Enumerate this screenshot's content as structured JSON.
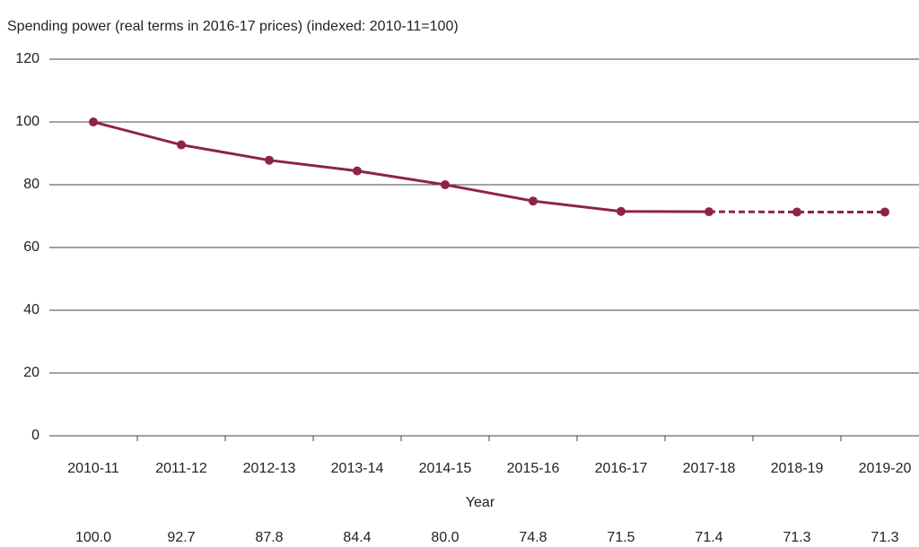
{
  "chart_data": {
    "type": "line",
    "title": "Spending power (real terms in 2016-17 prices) (indexed: 2010-11=100)",
    "x_label": "Year",
    "categories": [
      "2010-11",
      "2011-12",
      "2012-13",
      "2013-14",
      "2014-15",
      "2015-16",
      "2016-17",
      "2017-18",
      "2018-19",
      "2019-20"
    ],
    "series": [
      {
        "color": "#8e2443",
        "values": [
          100,
          92.7,
          87.8,
          84.4,
          80,
          74.8,
          71.5,
          71.4,
          71.3,
          71.3
        ],
        "value_labels": [
          "100.0",
          "92.7",
          "87.8",
          "84.4",
          "80.0",
          "74.8",
          "71.5",
          "71.4",
          "71.3",
          "71.3"
        ],
        "dashed_from": "2017-18"
      }
    ],
    "ylim": [
      0,
      120
    ],
    "yticks": [
      0,
      20,
      40,
      60,
      80,
      100,
      120
    ],
    "grid": true
  }
}
